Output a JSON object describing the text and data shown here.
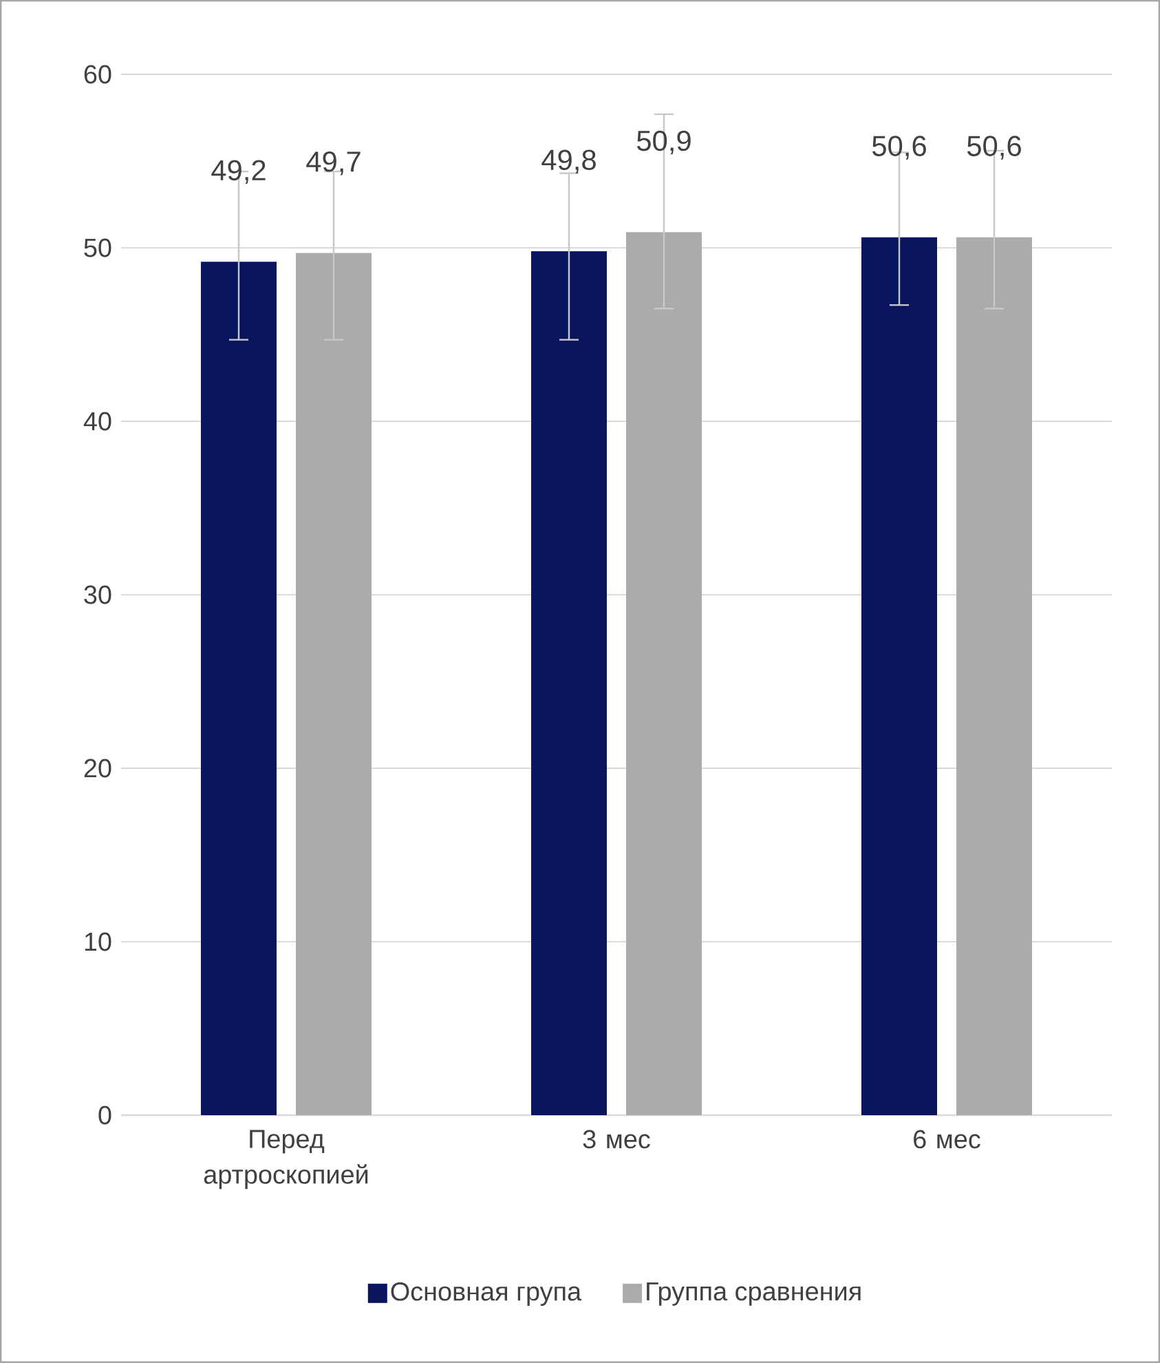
{
  "chart_data": {
    "type": "bar",
    "categories": [
      "Перед артроскопией",
      "3 мес",
      "6 мес"
    ],
    "series": [
      {
        "name": "Основная група",
        "color": "#0a1560",
        "values": [
          49.2,
          49.8,
          50.6
        ],
        "errors": [
          [
            44.7,
            54.4
          ],
          [
            44.7,
            54.3
          ],
          [
            46.7,
            55.5
          ]
        ],
        "value_labels": [
          "49,2",
          "49,8",
          "50,6"
        ]
      },
      {
        "name": "Группа сравнения",
        "color": "#adaaaa",
        "values": [
          49.7,
          50.9,
          50.6
        ],
        "errors": [
          [
            44.7,
            54.4
          ],
          [
            46.5,
            57.7
          ],
          [
            46.5,
            55.6
          ]
        ],
        "value_labels": [
          "49,7",
          "50,9",
          "50,6"
        ]
      }
    ],
    "ylim": [
      0,
      60
    ],
    "yticks": [
      0,
      10,
      20,
      30,
      40,
      50,
      60
    ],
    "grid": "y",
    "legend": "bottom"
  }
}
